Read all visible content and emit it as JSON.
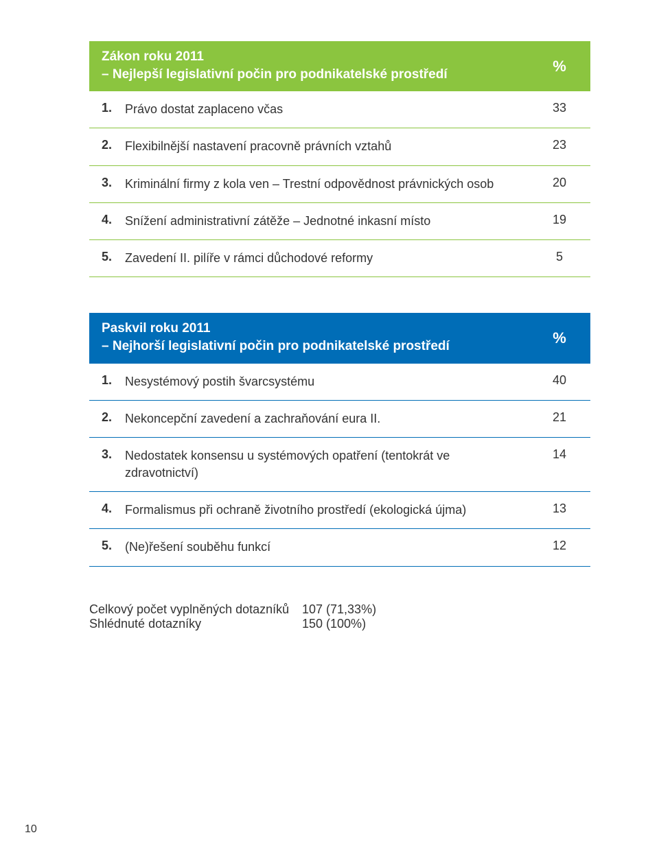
{
  "colors": {
    "table1_header_bg": "#8bc53f",
    "table1_row_border": "#8bc53f",
    "table2_header_bg": "#006db7",
    "table2_row_border": "#006db7",
    "header_text": "#ffffff",
    "body_text": "#333333",
    "page_bg": "#ffffff"
  },
  "table1": {
    "header_title_line1": "Zákon roku 2011",
    "header_title_line2": "– Nejlepší legislativní počin pro podnikatelské prostředí",
    "percent_symbol": "%",
    "rows": [
      {
        "num": "1.",
        "text": "Právo dostat zaplaceno včas",
        "value": "33"
      },
      {
        "num": "2.",
        "text": "Flexibilnější nastavení pracovně právních vztahů",
        "value": "23"
      },
      {
        "num": "3.",
        "text": "Kriminální firmy z kola ven – Trestní odpovědnost právnických osob",
        "value": "20"
      },
      {
        "num": "4.",
        "text": "Snížení administrativní zátěže – Jednotné inkasní místo",
        "value": "19"
      },
      {
        "num": "5.",
        "text": "Zavedení II. pilíře v rámci důchodové reformy",
        "value": "5"
      }
    ]
  },
  "table2": {
    "header_title_line1": "Paskvil roku 2011",
    "header_title_line2": "– Nejhorší legislativní počin pro podnikatelské prostředí",
    "percent_symbol": "%",
    "rows": [
      {
        "num": "1.",
        "text": "Nesystémový postih švarcsystému",
        "value": "40"
      },
      {
        "num": "2.",
        "text": "Nekoncepční zavedení a zachraňování eura II.",
        "value": "21"
      },
      {
        "num": "3.",
        "text": "Nedostatek konsensu u systémových opatření (tentokrát ve zdravotnictví)",
        "value": "14"
      },
      {
        "num": "4.",
        "text": "Formalismus při ochraně životního prostředí (ekologická újma)",
        "value": "13"
      },
      {
        "num": "5.",
        "text": "(Ne)řešení souběhu funkcí",
        "value": "12"
      }
    ]
  },
  "summary": {
    "row1_label": "Celkový počet vyplněných dotazníků",
    "row1_value": "107 (71,33%)",
    "row2_label": "Shlédnuté dotazníky",
    "row2_value": "150 (100%)"
  },
  "page_number": "10"
}
